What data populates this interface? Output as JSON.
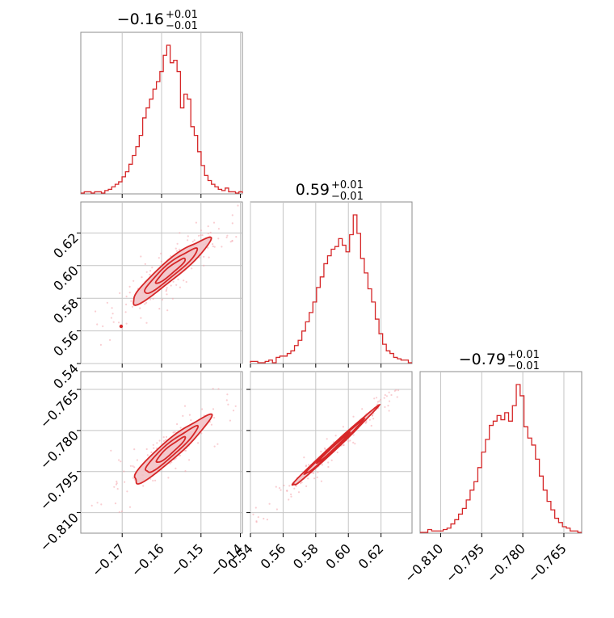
{
  "colors": {
    "series": "#d62728",
    "fill": "#f2c2c6",
    "scatter": "#f4a6ad",
    "grid": "#c4c4c4",
    "frame": "#8c8c8c"
  },
  "chart_data": {
    "type": "corner",
    "grid": true,
    "parameters": [
      {
        "median_label": "−0.16",
        "upper_error": "+0.01",
        "lower_error": "−0.01",
        "range": [
          -0.1805,
          -0.1395
        ],
        "ticks": [
          {
            "value": -0.17,
            "label": "−0.17"
          },
          {
            "value": -0.16,
            "label": "−0.16"
          },
          {
            "value": -0.15,
            "label": "−0.15"
          },
          {
            "value": -0.14,
            "label": "−0.14"
          }
        ]
      },
      {
        "median_label": "0.59",
        "upper_error": "+0.01",
        "lower_error": "−0.01",
        "range": [
          0.54,
          0.639
        ],
        "ticks": [
          {
            "value": 0.54,
            "label": "0.54"
          },
          {
            "value": 0.56,
            "label": "0.56"
          },
          {
            "value": 0.58,
            "label": "0.58"
          },
          {
            "value": 0.6,
            "label": "0.60"
          },
          {
            "value": 0.62,
            "label": "0.62"
          }
        ]
      },
      {
        "median_label": "−0.79",
        "upper_error": "+0.01",
        "lower_error": "−0.01",
        "range": [
          -0.8175,
          -0.7585
        ],
        "ticks": [
          {
            "value": -0.81,
            "label": "−0.810"
          },
          {
            "value": -0.795,
            "label": "−0.795"
          },
          {
            "value": -0.78,
            "label": "−0.780"
          },
          {
            "value": -0.765,
            "label": "−0.765"
          }
        ]
      }
    ],
    "histograms": [
      {
        "parameter": 0,
        "counts": [
          0,
          1,
          1,
          0,
          1,
          1,
          0,
          2,
          3,
          5,
          7,
          9,
          13,
          17,
          23,
          30,
          37,
          46,
          60,
          68,
          75,
          83,
          89,
          97,
          110,
          118,
          104,
          106,
          97,
          68,
          79,
          75,
          53,
          46,
          33,
          22,
          14,
          10,
          7,
          5,
          3,
          2,
          4,
          1,
          1,
          0,
          1
        ]
      },
      {
        "parameter": 1,
        "counts": [
          1,
          1,
          0,
          0,
          1,
          2,
          0,
          4,
          5,
          5,
          7,
          9,
          13,
          17,
          24,
          31,
          38,
          46,
          57,
          65,
          75,
          81,
          86,
          88,
          94,
          89,
          84,
          97,
          112,
          98,
          79,
          68,
          56,
          46,
          33,
          22,
          14,
          9,
          7,
          4,
          3,
          2,
          2,
          0
        ]
      },
      {
        "parameter": 2,
        "counts": [
          0,
          0,
          2,
          1,
          1,
          1,
          2,
          3,
          6,
          9,
          13,
          17,
          23,
          30,
          36,
          46,
          57,
          66,
          76,
          79,
          83,
          80,
          85,
          79,
          90,
          105,
          97,
          75,
          67,
          62,
          52,
          40,
          30,
          22,
          16,
          10,
          7,
          4,
          3,
          1,
          1,
          0
        ]
      }
    ],
    "pairs": [
      {
        "x_param": 0,
        "y_param": 1,
        "correlation": 0.97
      },
      {
        "x_param": 0,
        "y_param": 2,
        "correlation": 0.97
      },
      {
        "x_param": 1,
        "y_param": 2,
        "correlation": 0.997
      }
    ],
    "contour_levels": [
      0.5,
      0.8,
      0.95
    ]
  }
}
